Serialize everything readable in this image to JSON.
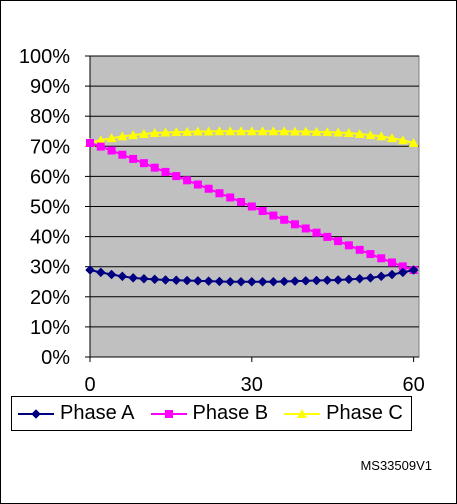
{
  "chart_data": {
    "type": "line",
    "title": "",
    "xlabel": "",
    "ylabel": "",
    "xlim": [
      0,
      61
    ],
    "ylim": [
      0,
      100
    ],
    "grid": true,
    "plot_background": "#c0c0c0",
    "legend_position": "bottom",
    "x_ticks": [
      0,
      30,
      60
    ],
    "x_tick_labels": [
      "0",
      "30",
      "60"
    ],
    "y_ticks": [
      0,
      10,
      20,
      30,
      40,
      50,
      60,
      70,
      80,
      90,
      100
    ],
    "y_tick_labels": [
      "0%",
      "10%",
      "20%",
      "30%",
      "40%",
      "50%",
      "60%",
      "70%",
      "80%",
      "90%",
      "100%"
    ],
    "x": [
      0,
      2,
      4,
      6,
      8,
      10,
      12,
      14,
      16,
      18,
      20,
      22,
      24,
      26,
      28,
      30,
      32,
      34,
      36,
      38,
      40,
      42,
      44,
      46,
      48,
      50,
      52,
      54,
      56,
      58,
      60
    ],
    "series": [
      {
        "name": "Phase A",
        "color": "#000080",
        "marker": "diamond",
        "values": [
          28.9,
          28.1,
          27.4,
          26.8,
          26.3,
          26.0,
          25.8,
          25.6,
          25.5,
          25.4,
          25.3,
          25.2,
          25.1,
          25.0,
          25.0,
          25.0,
          25.0,
          25.0,
          25.1,
          25.2,
          25.3,
          25.4,
          25.5,
          25.6,
          25.8,
          26.0,
          26.3,
          26.8,
          27.4,
          28.1,
          28.9
        ]
      },
      {
        "name": "Phase B",
        "color": "#ff00ff",
        "marker": "square",
        "values": [
          71.1,
          69.9,
          68.6,
          67.2,
          65.8,
          64.4,
          62.9,
          61.5,
          60.1,
          58.7,
          57.3,
          55.9,
          54.4,
          53.0,
          51.5,
          50.0,
          48.5,
          47.0,
          45.6,
          44.1,
          42.7,
          41.3,
          39.9,
          38.5,
          37.1,
          35.6,
          34.2,
          32.8,
          31.4,
          30.1,
          28.9
        ]
      },
      {
        "name": "Phase C",
        "color": "#ffff00",
        "marker": "triangle",
        "values": [
          71.1,
          72.0,
          72.7,
          73.3,
          73.7,
          74.1,
          74.4,
          74.6,
          74.7,
          74.8,
          74.9,
          74.9,
          75.0,
          75.0,
          75.0,
          75.0,
          75.0,
          75.0,
          75.0,
          74.9,
          74.9,
          74.8,
          74.7,
          74.6,
          74.4,
          74.1,
          73.7,
          73.3,
          72.7,
          72.0,
          71.1
        ]
      }
    ]
  },
  "footer": {
    "reference": "MS33509V1"
  }
}
